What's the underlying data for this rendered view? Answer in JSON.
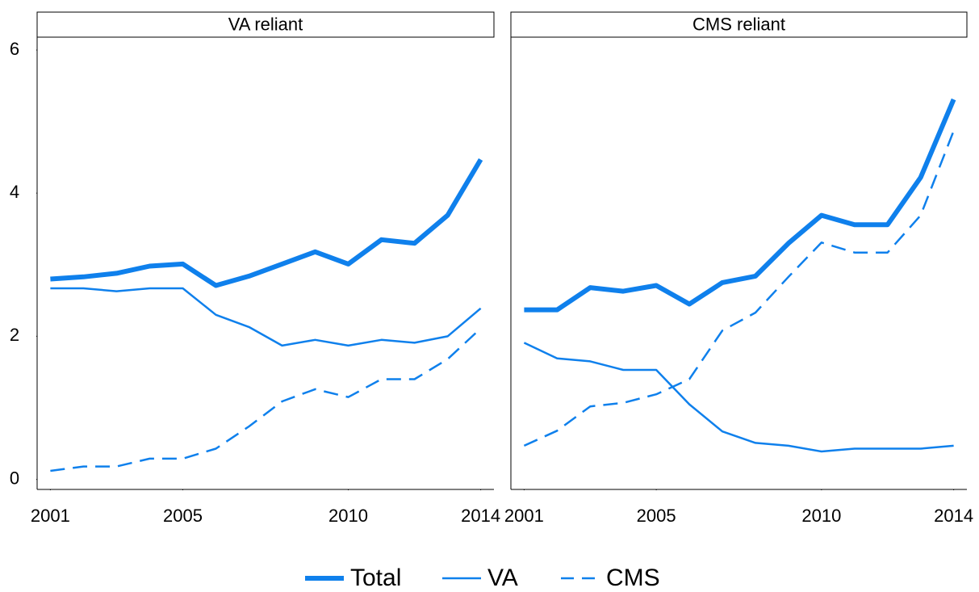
{
  "chart_data": [
    {
      "type": "line",
      "title": "VA reliant",
      "x": [
        2001,
        2002,
        2003,
        2004,
        2005,
        2006,
        2007,
        2008,
        2009,
        2010,
        2011,
        2012,
        2013,
        2014
      ],
      "xlim": [
        2000.6,
        2014.4
      ],
      "xticks": [
        2001,
        2005,
        2010,
        2014
      ],
      "ylim": [
        -0.14,
        6.18
      ],
      "yticks": [
        0,
        2,
        4,
        6
      ],
      "series": [
        {
          "name": "Total",
          "color": "#0f80ec",
          "line_width": 6,
          "line_style": "solid",
          "values": [
            2.8,
            2.83,
            2.88,
            2.98,
            3.01,
            2.71,
            2.84,
            3.01,
            3.18,
            3.01,
            3.35,
            3.3,
            3.69,
            4.47
          ]
        },
        {
          "name": "VA",
          "color": "#0f80ec",
          "line_width": 2.5,
          "line_style": "solid",
          "values": [
            2.67,
            2.67,
            2.63,
            2.67,
            2.67,
            2.3,
            2.13,
            1.87,
            1.95,
            1.87,
            1.95,
            1.91,
            2.0,
            2.39
          ]
        },
        {
          "name": "CMS",
          "color": "#0f80ec",
          "line_width": 2.5,
          "line_style": "dashed",
          "values": [
            0.12,
            0.18,
            0.18,
            0.29,
            0.29,
            0.43,
            0.74,
            1.09,
            1.26,
            1.15,
            1.4,
            1.4,
            1.68,
            2.11
          ]
        }
      ]
    },
    {
      "type": "line",
      "title": "CMS reliant",
      "x": [
        2001,
        2002,
        2003,
        2004,
        2005,
        2006,
        2007,
        2008,
        2009,
        2010,
        2011,
        2012,
        2013,
        2014
      ],
      "xlim": [
        2000.6,
        2014.4
      ],
      "xticks": [
        2001,
        2005,
        2010,
        2014
      ],
      "ylim": [
        -0.14,
        6.18
      ],
      "series": [
        {
          "color": "#0f80ec",
          "line_width": 6,
          "line_style": "solid",
          "values": [
            2.37,
            2.37,
            2.68,
            2.63,
            2.71,
            2.45,
            2.75,
            2.84,
            3.3,
            3.69,
            3.56,
            3.56,
            4.22,
            5.31
          ]
        },
        {
          "color": "#0f80ec",
          "line_width": 2.5,
          "line_style": "solid",
          "values": [
            1.91,
            1.69,
            1.65,
            1.53,
            1.53,
            1.05,
            0.67,
            0.51,
            0.47,
            0.39,
            0.43,
            0.43,
            0.43,
            0.47
          ]
        },
        {
          "color": "#0f80ec",
          "line_width": 2.5,
          "line_style": "dashed",
          "values": [
            0.47,
            0.68,
            1.02,
            1.07,
            1.19,
            1.4,
            2.08,
            2.33,
            2.83,
            3.31,
            3.17,
            3.17,
            3.69,
            4.87
          ]
        }
      ]
    }
  ]
}
